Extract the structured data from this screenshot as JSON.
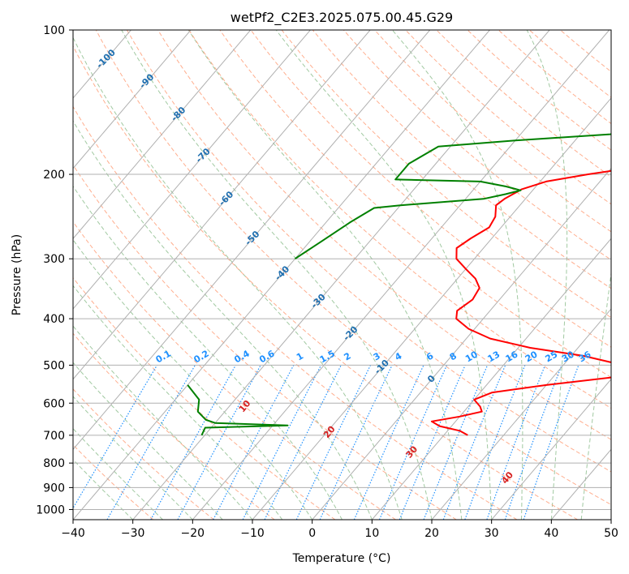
{
  "chart_data": {
    "type": "line",
    "title": "wetPf2_C2E3.2025.075.00.45.G29",
    "xlabel": "Temperature (°C)",
    "ylabel": "Pressure (hPa)",
    "xlim": [
      -40,
      50
    ],
    "ylim": [
      1050,
      100
    ],
    "y_scale": "log",
    "x_ticks": [
      -40,
      -30,
      -20,
      -10,
      0,
      10,
      20,
      30,
      40,
      50
    ],
    "x_tick_labels": [
      "−40",
      "−30",
      "−20",
      "−10",
      "0",
      "10",
      "20",
      "30",
      "40",
      "50"
    ],
    "y_ticks": [
      100,
      200,
      300,
      400,
      500,
      600,
      700,
      800,
      900,
      1000
    ],
    "y_tick_labels": [
      "100",
      "200",
      "300",
      "400",
      "500",
      "600",
      "700",
      "800",
      "900",
      "1000"
    ],
    "grid": true,
    "colors": {
      "temperature": "#ff0000",
      "dewpoint": "#008000",
      "isotherm": "#b0b0b0",
      "dry_adiabat": "#ffa07a",
      "moist_adiabat": "#90c090",
      "mixing_ratio": "#1e90ff",
      "isotherm_label": "#1f6fb0",
      "dry_adiabat_label": "#d62020"
    },
    "series": [
      {
        "key": "temperature",
        "points": [
          [
            18,
            100
          ],
          [
            17.5,
            105
          ],
          [
            16.5,
            115
          ],
          [
            14.5,
            125
          ],
          [
            13,
            135
          ],
          [
            10.5,
            150
          ],
          [
            9.5,
            165
          ],
          [
            9,
            180
          ],
          [
            7.5,
            188
          ],
          [
            4,
            193
          ],
          [
            0,
            197
          ],
          [
            -3,
            200
          ],
          [
            -9,
            207
          ],
          [
            -12,
            215
          ],
          [
            -13.5,
            225
          ],
          [
            -14,
            232
          ],
          [
            -12.5,
            245
          ],
          [
            -12,
            258
          ],
          [
            -13.5,
            272
          ],
          [
            -14.5,
            285
          ],
          [
            -13,
            300
          ],
          [
            -10,
            315
          ],
          [
            -7,
            330
          ],
          [
            -5,
            345
          ],
          [
            -4.5,
            365
          ],
          [
            -5.5,
            385
          ],
          [
            -4.5,
            400
          ],
          [
            -1,
            420
          ],
          [
            4,
            440
          ],
          [
            12,
            460
          ],
          [
            22,
            478
          ],
          [
            30,
            500
          ],
          [
            33.5,
            515
          ],
          [
            30,
            530
          ],
          [
            20,
            550
          ],
          [
            12,
            570
          ],
          [
            10,
            590
          ],
          [
            12,
            610
          ],
          [
            13,
            625
          ],
          [
            10,
            640
          ],
          [
            6,
            655
          ],
          [
            8,
            670
          ],
          [
            12,
            685
          ],
          [
            14,
            700
          ]
        ]
      },
      {
        "key": "dewpoint",
        "points": [
          [
            4,
            100
          ],
          [
            1.5,
            110
          ],
          [
            2,
            120
          ],
          [
            3.5,
            130
          ],
          [
            4,
            145
          ],
          [
            2,
            155
          ],
          [
            -5,
            165
          ],
          [
            -20,
            170
          ],
          [
            -32,
            175
          ],
          [
            -34.5,
            190
          ],
          [
            -34.5,
            205
          ],
          [
            -20,
            207
          ],
          [
            -15,
            212
          ],
          [
            -12,
            216
          ],
          [
            -14,
            220
          ],
          [
            -17,
            225
          ],
          [
            -30,
            232
          ],
          [
            -34,
            235
          ],
          [
            -36,
            252
          ],
          [
            -38,
            275
          ],
          [
            -40,
            300
          ]
        ]
      },
      {
        "key": "dewpoint",
        "points": [
          [
            -40,
            550
          ],
          [
            -36,
            590
          ],
          [
            -34.5,
            625
          ],
          [
            -32,
            650
          ],
          [
            -30,
            660
          ],
          [
            -17.5,
            668
          ],
          [
            -31,
            675
          ],
          [
            -30.5,
            700
          ]
        ]
      }
    ],
    "isotherm_labels": [
      "-100",
      "-90",
      "-80",
      "-70",
      "-60",
      "-50",
      "-40",
      "-30",
      "-20",
      "-10",
      "0"
    ],
    "isotherm_label_values": [
      -100,
      -90,
      -80,
      -70,
      -60,
      -50,
      -40,
      -30,
      -20,
      -10,
      0
    ],
    "mixing_ratio_labels": [
      "0.1",
      "0.2",
      "0.4",
      "0.6",
      "1",
      "1.5",
      "2",
      "3",
      "4",
      "6",
      "8",
      "10",
      "13",
      "16",
      "20",
      "25",
      "30",
      "36"
    ],
    "mixing_ratio_values": [
      0.1,
      0.2,
      0.4,
      0.6,
      1,
      1.5,
      2,
      3,
      4,
      6,
      8,
      10,
      13,
      16,
      20,
      25,
      30,
      36
    ],
    "dry_adiabat_labels": [
      "10",
      "20",
      "30",
      "40"
    ],
    "dry_adiabat_label_values": [
      10,
      20,
      30,
      40
    ]
  }
}
